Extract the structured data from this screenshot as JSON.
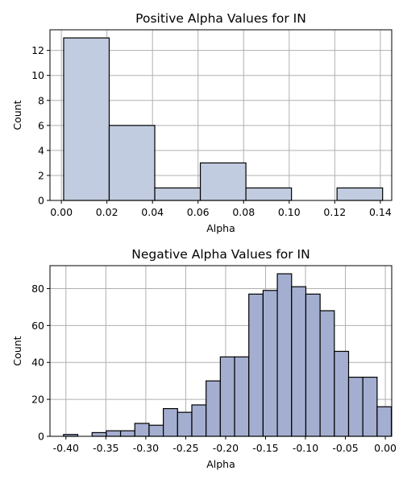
{
  "chart_data": [
    {
      "type": "bar",
      "title": "Positive Alpha Values for IN",
      "xlabel": "Alpha",
      "ylabel": "Count",
      "xlim": [
        -0.005,
        0.145
      ],
      "ylim": [
        0,
        13.65
      ],
      "xticks": [
        0.0,
        0.02,
        0.04,
        0.06,
        0.08,
        0.1,
        0.12,
        0.14
      ],
      "xtick_labels": [
        "0.00",
        "0.02",
        "0.04",
        "0.06",
        "0.08",
        "0.10",
        "0.12",
        "0.14"
      ],
      "yticks": [
        0,
        2,
        4,
        6,
        8,
        10,
        12
      ],
      "ytick_labels": [
        "0",
        "2",
        "4",
        "6",
        "8",
        "10",
        "12"
      ],
      "grid": true,
      "bar_color": "#c2cce0",
      "bins": [
        {
          "x0": 0.001,
          "x1": 0.021,
          "count": 13
        },
        {
          "x0": 0.021,
          "x1": 0.041,
          "count": 6
        },
        {
          "x0": 0.041,
          "x1": 0.061,
          "count": 1
        },
        {
          "x0": 0.061,
          "x1": 0.081,
          "count": 3
        },
        {
          "x0": 0.081,
          "x1": 0.101,
          "count": 1
        },
        {
          "x0": 0.101,
          "x1": 0.121,
          "count": 0
        },
        {
          "x0": 0.121,
          "x1": 0.141,
          "count": 1
        }
      ]
    },
    {
      "type": "bar",
      "title": "Negative Alpha Values for IN",
      "xlabel": "Alpha",
      "ylabel": "Count",
      "xlim": [
        -0.42,
        0.008
      ],
      "ylim": [
        0,
        92.4
      ],
      "xticks": [
        -0.4,
        -0.35,
        -0.3,
        -0.25,
        -0.2,
        -0.15,
        -0.1,
        -0.05,
        0.0
      ],
      "xtick_labels": [
        "-0.40",
        "-0.35",
        "-0.30",
        "-0.25",
        "-0.20",
        "-0.15",
        "-0.10",
        "-0.05",
        "0.00"
      ],
      "yticks": [
        0,
        20,
        40,
        60,
        80
      ],
      "ytick_labels": [
        "0",
        "20",
        "40",
        "60",
        "80"
      ],
      "grid": true,
      "bar_color": "#a3aed0",
      "bin_start": -0.403,
      "bin_width": 0.01785,
      "counts": [
        1,
        0,
        2,
        3,
        3,
        7,
        6,
        15,
        13,
        17,
        30,
        43,
        43,
        77,
        79,
        88,
        81,
        77,
        68,
        46,
        32,
        32,
        16
      ]
    }
  ]
}
